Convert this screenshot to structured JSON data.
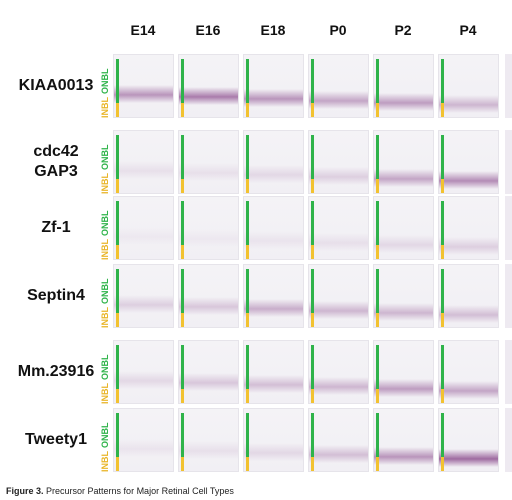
{
  "columns": [
    "E14",
    "E16",
    "E18",
    "P0",
    "P2",
    "P4"
  ],
  "rows": [
    {
      "label_lines": [
        "KIAA0013"
      ],
      "stain": [
        0.55,
        0.7,
        0.55,
        0.45,
        0.5,
        0.35
      ]
    },
    {
      "label_lines": [
        "cdc42",
        "GAP3"
      ],
      "stain": [
        0.1,
        0.1,
        0.15,
        0.2,
        0.45,
        0.6
      ]
    },
    {
      "label_lines": [
        "Zf-1"
      ],
      "stain": [
        0.05,
        0.05,
        0.08,
        0.1,
        0.15,
        0.2
      ]
    },
    {
      "label_lines": [
        "Septin4"
      ],
      "stain": [
        0.2,
        0.25,
        0.4,
        0.35,
        0.35,
        0.3
      ]
    },
    {
      "label_lines": [
        "Mm.23916"
      ],
      "stain": [
        0.15,
        0.25,
        0.3,
        0.35,
        0.5,
        0.45
      ]
    },
    {
      "label_lines": [
        "Tweety1"
      ],
      "stain": [
        0.08,
        0.1,
        0.15,
        0.3,
        0.55,
        0.8
      ]
    }
  ],
  "layer_labels": {
    "onbl": "ONBL",
    "inbl": "INBL"
  },
  "caption": {
    "number": "Figure 3.",
    "text": "Precursor Patterns for Major Retinal Cell Types"
  },
  "colors": {
    "stain": "#8a4a8c",
    "onbl": "#2fb34a",
    "inbl": "#f2c230"
  }
}
